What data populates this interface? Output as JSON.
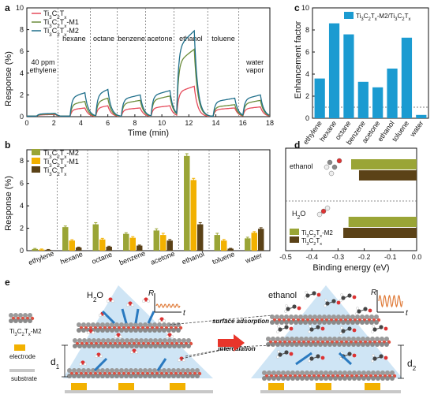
{
  "panels": {
    "a": "a",
    "b": "b",
    "c": "c",
    "d": "d",
    "e": "e"
  },
  "chart_data": [
    {
      "id": "a",
      "type": "line",
      "xlabel": "Time (min)",
      "ylabel": "Response (%)",
      "xlim": [
        0,
        18
      ],
      "ylim": [
        0,
        10
      ],
      "xticks": [
        "0",
        "2",
        "4",
        "6",
        "8",
        "10",
        "12",
        "14",
        "16",
        "18"
      ],
      "yticks": [
        "0",
        "2",
        "4",
        "6",
        "8",
        "10"
      ],
      "x_ticks_values": [
        0,
        2,
        4,
        6,
        8,
        10,
        12,
        14,
        16,
        18
      ],
      "y_ticks_values": [
        0,
        2,
        4,
        6,
        8,
        10
      ],
      "gas_boundaries": [
        2.3,
        4.7,
        6.7,
        8.8,
        10.9,
        13.4,
        15.7
      ],
      "gas_labels": [
        "40 ppm\nethylene",
        "hexane",
        "octane",
        "benzene",
        "acetone",
        "ethanol",
        "toluene",
        "water\nvapor"
      ],
      "gas_label_x": [
        1.2,
        3.5,
        5.7,
        7.75,
        9.85,
        12.15,
        14.55,
        16.9
      ],
      "pulses": [
        {
          "start": 0.7,
          "end": 2.1
        },
        {
          "start": 3.2,
          "end": 4.3
        },
        {
          "start": 5.1,
          "end": 6.0
        },
        {
          "start": 7.0,
          "end": 8.4
        },
        {
          "start": 9.2,
          "end": 10.6
        },
        {
          "start": 11.1,
          "end": 12.4
        },
        {
          "start": 13.8,
          "end": 15.4
        },
        {
          "start": 16.0,
          "end": 17.3
        }
      ],
      "series": [
        {
          "name": "Ti3C2Tx",
          "color": "#e64b5b",
          "peaks": [
            0.2,
            0.8,
            1.0,
            0.8,
            1.0,
            2.8,
            0.8,
            0.9
          ]
        },
        {
          "name": "Ti3C2Tx-M1",
          "color": "#6b8c3a",
          "peaks": [
            0.25,
            1.4,
            1.7,
            1.5,
            1.9,
            6.2,
            1.1,
            1.5
          ]
        },
        {
          "name": "Ti3C2Tx-M2",
          "color": "#1f6f8b",
          "peaks": [
            0.3,
            2.2,
            2.5,
            2.0,
            2.4,
            7.9,
            1.7,
            2.0
          ]
        }
      ]
    },
    {
      "id": "b",
      "type": "bar",
      "ylabel": "Response (%)",
      "ylim": [
        0,
        9
      ],
      "yticks": [
        "0",
        "2",
        "4",
        "6",
        "8"
      ],
      "y_ticks_values": [
        0,
        2,
        4,
        6,
        8
      ],
      "categories": [
        "ethylene",
        "hexane",
        "octane",
        "benzene",
        "acetone",
        "ethanol",
        "toluene",
        "water"
      ],
      "series": [
        {
          "name": "Ti3C2Tx-M2",
          "color": "#9aa536",
          "values": [
            0.15,
            2.1,
            2.35,
            1.5,
            1.8,
            8.45,
            1.4,
            1.1
          ],
          "errors": [
            0.05,
            0.1,
            0.15,
            0.1,
            0.15,
            0.2,
            0.15,
            0.1
          ]
        },
        {
          "name": "Ti3C2Tx-M1",
          "color": "#f2b100",
          "values": [
            0.1,
            0.9,
            1.0,
            1.15,
            1.4,
            6.3,
            0.9,
            1.6
          ],
          "errors": [
            0.05,
            0.08,
            0.1,
            0.1,
            0.15,
            0.15,
            0.1,
            0.1
          ]
        },
        {
          "name": "Ti3C2Tx",
          "color": "#5b4217",
          "values": [
            0.08,
            0.28,
            0.35,
            0.45,
            0.9,
            2.35,
            0.18,
            1.95
          ],
          "errors": [
            0.03,
            0.04,
            0.05,
            0.05,
            0.1,
            0.15,
            0.03,
            0.1
          ]
        }
      ]
    },
    {
      "id": "c",
      "type": "bar",
      "ylabel": "Enhancement factor",
      "ylim": [
        0,
        10
      ],
      "yticks": [
        "0",
        "2",
        "4",
        "6",
        "8",
        "10"
      ],
      "y_ticks_values": [
        0,
        2,
        4,
        6,
        8,
        10
      ],
      "reference_line": 1,
      "categories": [
        "ethylene",
        "hexane",
        "octane",
        "benzene",
        "acetone",
        "ethanol",
        "toluene",
        "water"
      ],
      "series": [
        {
          "name": "Ti3C2Tx-M2/Ti3C2Tx",
          "color": "#1b9bd1",
          "values": [
            3.6,
            8.6,
            7.6,
            3.3,
            2.8,
            4.5,
            7.3,
            0.3
          ]
        }
      ]
    },
    {
      "id": "d",
      "type": "bar",
      "orientation": "horizontal",
      "xlabel": "Binding energy (eV)",
      "xlim": [
        -0.5,
        0.0
      ],
      "xticks": [
        "-0.5",
        "-0.4",
        "-0.3",
        "-0.2",
        "-0.1",
        "0.0"
      ],
      "x_ticks_values": [
        -0.5,
        -0.4,
        -0.3,
        -0.2,
        -0.1,
        0.0
      ],
      "categories": [
        "ethanol",
        "H2O"
      ],
      "series": [
        {
          "name": "Ti3C2Tx-M2",
          "color": "#9aa536",
          "values": [
            -0.25,
            -0.26
          ]
        },
        {
          "name": "Ti3C2Tx",
          "color": "#5b4217",
          "values": [
            -0.22,
            -0.28
          ]
        }
      ]
    }
  ],
  "legends": {
    "a": [
      {
        "base": "Ti",
        "s1": "3",
        "b2": "C",
        "s2": "2",
        "b3": "T",
        "s3": "x",
        "suffix": ""
      },
      {
        "base": "Ti",
        "s1": "3",
        "b2": "C",
        "s2": "2",
        "b3": "T",
        "s3": "x",
        "suffix": "-M1"
      },
      {
        "base": "Ti",
        "s1": "3",
        "b2": "C",
        "s2": "2",
        "b3": "T",
        "s3": "x",
        "suffix": "-M2"
      }
    ],
    "b": [
      {
        "base": "Ti",
        "s1": "3",
        "b2": "C",
        "s2": "2",
        "b3": "T",
        "s3": "x",
        "suffix": "-M2"
      },
      {
        "base": "Ti",
        "s1": "3",
        "b2": "C",
        "s2": "2",
        "b3": "T",
        "s3": "x",
        "suffix": "-M1"
      },
      {
        "base": "Ti",
        "s1": "3",
        "b2": "C",
        "s2": "2",
        "b3": "T",
        "s3": "x",
        "suffix": ""
      }
    ],
    "c": {
      "text1": "Ti",
      "s1": "3",
      "text2": "C",
      "s2": "2",
      "text3": "T",
      "s3": "x",
      "text4": "-M2/Ti",
      "s4": "3",
      "text5": "C",
      "s5": "2",
      "text6": "T",
      "s6": "x"
    },
    "d": [
      {
        "base": "Ti",
        "s1": "3",
        "b2": "C",
        "s2": "2",
        "b3": "T",
        "s3": "x",
        "suffix": "-M2"
      },
      {
        "base": "Ti",
        "s1": "3",
        "b2": "C",
        "s2": "2",
        "b3": "T",
        "s3": "x",
        "suffix": ""
      }
    ]
  },
  "schematic": {
    "left_title_h": "H",
    "left_title_sub": "2",
    "left_title_o": "O",
    "right_title": "ethanol",
    "r_label": "R",
    "t_label": "t",
    "surface_adsorption": "surface adsorption",
    "intercalation": "intercalation",
    "d1": "d",
    "d1_sub": "1",
    "d2": "d",
    "d2_sub": "2",
    "legend_material": "Ti3C2Tx-M2",
    "legend_electrode": "electrode",
    "legend_substrate": "substrate",
    "colors": {
      "wave_left": "#e07b39",
      "wave_right": "#e07b39",
      "arrow": "#e8352a",
      "blue_arrow": "#2a7ac0",
      "electrode": "#f2b100"
    }
  },
  "d_molecule_labels": {
    "ethanol": "ethanol",
    "h2o_h": "H",
    "h2o_sub": "2",
    "h2o_o": "O"
  }
}
